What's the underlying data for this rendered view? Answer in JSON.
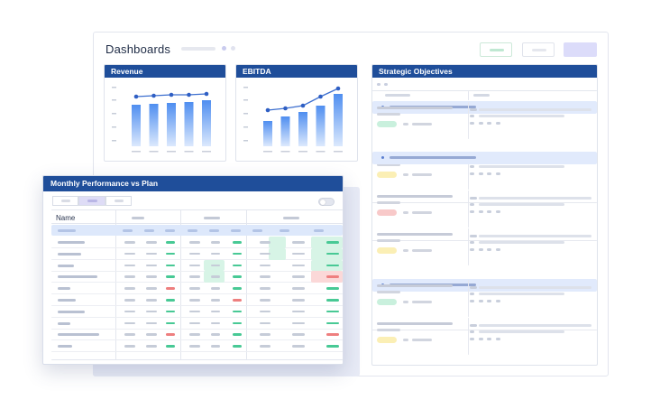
{
  "dashboard": {
    "title": "Dashboards"
  },
  "panels": {
    "revenue": {
      "title": "Revenue"
    },
    "ebitda": {
      "title": "EBITDA"
    },
    "strategic": {
      "title": "Strategic Objectives"
    }
  },
  "monthly": {
    "title": "Monthly Performance vs Plan",
    "name_header": "Name"
  },
  "colors": {
    "header_blue": "#1f4e9a",
    "bar_blue": "#4f8ef0",
    "status_green": "#c9f0dd",
    "status_red": "#f8c9c9",
    "status_yellow": "#fbefb5",
    "accent_purple": "#dcdcfa"
  },
  "chart_data": [
    {
      "type": "bar",
      "title": "Revenue",
      "categories": [
        "",
        "",
        "",
        "",
        ""
      ],
      "values": [
        46,
        47,
        48,
        49,
        51
      ],
      "series": [
        {
          "name": "",
          "values": [
            46,
            47,
            48,
            49,
            51
          ]
        },
        {
          "name": "",
          "values": [
            55,
            56,
            57,
            57,
            58
          ]
        }
      ],
      "ylim": [
        0,
        70
      ],
      "grid": false
    },
    {
      "type": "bar",
      "title": "EBITDA",
      "categories": [
        "",
        "",
        "",
        "",
        ""
      ],
      "values": [
        28,
        33,
        38,
        45,
        58
      ],
      "series": [
        {
          "name": "",
          "values": [
            28,
            33,
            38,
            45,
            58
          ]
        },
        {
          "name": "",
          "values": [
            40,
            42,
            45,
            55,
            64
          ]
        }
      ],
      "ylim": [
        0,
        70
      ],
      "grid": false
    }
  ]
}
